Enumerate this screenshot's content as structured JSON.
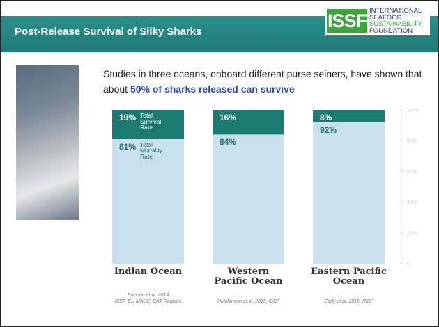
{
  "header": {
    "title": "Post-Release Survival of Silky Sharks",
    "logo_mark": "ISSF",
    "logo_text": [
      "INTERNATIONAL",
      "SEAFOOD",
      "SUSTAINABILITY",
      "FOUNDATION"
    ]
  },
  "intro": {
    "text": "Studies in three oceans, onboard different purse seiners, have shown that about ",
    "highlight": "50% of sharks released can survive"
  },
  "chart_data": {
    "type": "stacked_bar",
    "categories": [
      "Indian Ocean",
      "Western Pacific Ocean",
      "Eastern Pacific Ocean"
    ],
    "series": [
      {
        "name": "Total Survival Rate",
        "color": "#1b7b73",
        "values": [
          19,
          16,
          8
        ],
        "value_labels": [
          "19%",
          "16%",
          "8%"
        ]
      },
      {
        "name": "Total Mortality Rate",
        "color": "#c9e0ee",
        "values": [
          81,
          84,
          92
        ],
        "value_labels": [
          "81%",
          "84%",
          "92%"
        ]
      }
    ],
    "ylim": [
      0,
      100
    ],
    "yticks": [
      0,
      {
        "value": 20,
        "label": "20%"
      },
      {
        "value": 40,
        "label": "40%"
      },
      {
        "value": 60,
        "label": "60%"
      },
      {
        "value": 80,
        "label": "80%"
      },
      {
        "value": 100,
        "label": "100%"
      }
    ],
    "sources": [
      [
        "Poisson et al. 2014",
        "ISSF, EU MADE, CAT Requins"
      ],
      [
        "Hutchinson et al. 2015, ISSF"
      ],
      [
        "Eddy et al. 2015, ISSF"
      ]
    ]
  }
}
